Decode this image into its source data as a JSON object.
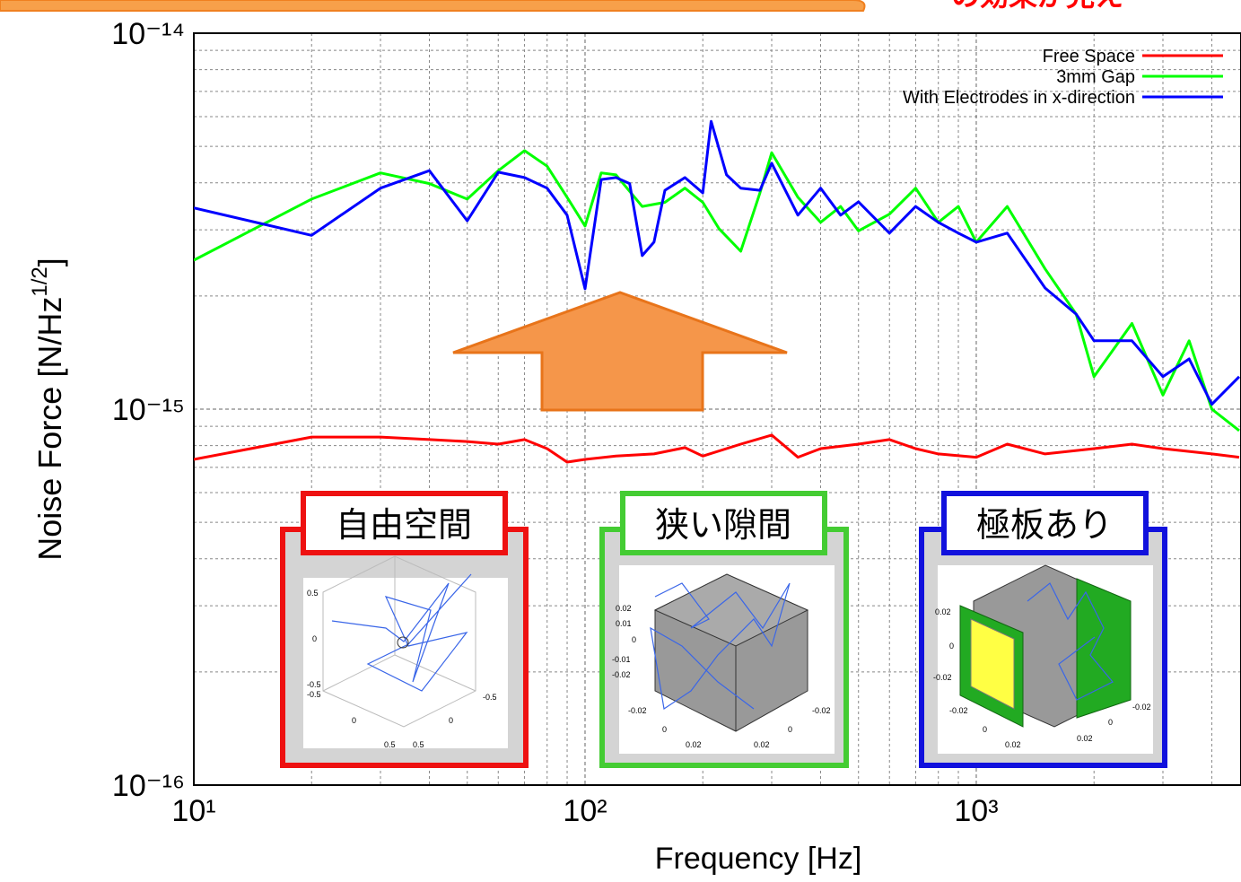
{
  "header": {
    "caption": "の効果が見え"
  },
  "chart_data": {
    "type": "line",
    "x_label": "Frequency [Hz]",
    "y_label": [
      "Noise Force [N/Hz",
      "1/2",
      "]"
    ],
    "log_x": true,
    "log_y": true,
    "grid": true,
    "xlim": [
      10,
      4750
    ],
    "ylim": [
      1e-16,
      1e-14
    ],
    "xticks": [
      {
        "value": 10,
        "label": "10¹"
      },
      {
        "value": 100,
        "label": "10²"
      },
      {
        "value": 1000,
        "label": "10³"
      }
    ],
    "yticks": [
      {
        "value": 1e-16,
        "label": "10⁻¹⁶"
      },
      {
        "value": 1e-15,
        "label": "10⁻¹⁵"
      },
      {
        "value": 1e-14,
        "label": "10⁻¹⁴"
      }
    ],
    "x_minor_ticks": [
      20,
      30,
      40,
      50,
      60,
      70,
      80,
      90,
      200,
      300,
      400,
      500,
      600,
      700,
      800,
      900,
      2000,
      3000,
      4000
    ],
    "y_minor_ticks": [
      2e-16,
      3e-16,
      4e-16,
      5e-16,
      6e-16,
      7e-16,
      8e-16,
      9e-16,
      2e-15,
      3e-15,
      4e-15,
      5e-15,
      6e-15,
      7e-15,
      8e-15,
      9e-15
    ],
    "legend": "upper right",
    "series": [
      {
        "name": "Free Space",
        "color": "#ff0000",
        "x": [
          10,
          20,
          30,
          40,
          50,
          60,
          70,
          80,
          90,
          100,
          120,
          150,
          180,
          200,
          250,
          300,
          350,
          400,
          500,
          600,
          700,
          800,
          1000,
          1200,
          1500,
          2000,
          2500,
          3000,
          4000,
          4700
        ],
        "values": [
          7.35e-16,
          8.43e-16,
          8.43e-16,
          8.3e-16,
          8.2e-16,
          8.07e-16,
          8.3e-16,
          7.85e-16,
          7.23e-16,
          7.35e-16,
          7.5e-16,
          7.6e-16,
          7.9e-16,
          7.5e-16,
          8.07e-16,
          8.53e-16,
          7.45e-16,
          7.85e-16,
          8.07e-16,
          8.3e-16,
          7.85e-16,
          7.6e-16,
          7.45e-16,
          8.07e-16,
          7.6e-16,
          7.85e-16,
          8.07e-16,
          7.85e-16,
          7.6e-16,
          7.45e-16
        ]
      },
      {
        "name": "3mm Gap",
        "color": "#00ff00",
        "x": [
          10,
          20,
          30,
          40,
          50,
          60,
          70,
          80,
          90,
          100,
          110,
          120,
          140,
          160,
          180,
          200,
          220,
          250,
          280,
          300,
          350,
          400,
          450,
          500,
          600,
          700,
          800,
          900,
          1000,
          1200,
          1500,
          1800,
          2000,
          2500,
          3000,
          3500,
          4000,
          4700
        ],
        "values": [
          2.49e-15,
          3.62e-15,
          4.25e-15,
          3.98e-15,
          3.62e-15,
          4.31e-15,
          4.87e-15,
          4.43e-15,
          3.66e-15,
          3.07e-15,
          4.25e-15,
          4.2e-15,
          3.46e-15,
          3.55e-15,
          3.87e-15,
          3.55e-15,
          3.02e-15,
          2.63e-15,
          3.76e-15,
          4.81e-15,
          3.66e-15,
          3.14e-15,
          3.46e-15,
          2.98e-15,
          3.3e-15,
          3.87e-15,
          3.14e-15,
          3.46e-15,
          2.78e-15,
          3.46e-15,
          2.36e-15,
          1.79e-15,
          1.22e-15,
          1.69e-15,
          1.09e-15,
          1.52e-15,
          1e-15,
          8.77e-16
        ]
      },
      {
        "name": "With Electrodes in x-direction",
        "color": "#0000ff",
        "x": [
          10,
          20,
          30,
          40,
          50,
          60,
          70,
          80,
          90,
          100,
          110,
          120,
          130,
          140,
          150,
          160,
          180,
          200,
          210,
          230,
          250,
          280,
          300,
          350,
          400,
          450,
          500,
          600,
          700,
          800,
          900,
          1000,
          1200,
          1500,
          1800,
          2000,
          2500,
          3000,
          3500,
          4000,
          4700
        ],
        "values": [
          3.43e-15,
          2.9e-15,
          3.87e-15,
          4.31e-15,
          3.17e-15,
          4.27e-15,
          4.13e-15,
          3.87e-15,
          3.28e-15,
          2.09e-15,
          4.08e-15,
          4.13e-15,
          3.98e-15,
          2.56e-15,
          2.78e-15,
          3.82e-15,
          4.13e-15,
          3.76e-15,
          5.83e-15,
          4.2e-15,
          3.87e-15,
          3.82e-15,
          4.51e-15,
          3.28e-15,
          3.87e-15,
          3.28e-15,
          3.56e-15,
          2.94e-15,
          3.46e-15,
          3.14e-15,
          2.94e-15,
          2.78e-15,
          2.94e-15,
          2.1e-15,
          1.79e-15,
          1.52e-15,
          1.52e-15,
          1.22e-15,
          1.36e-15,
          1.03e-15,
          1.22e-15
        ]
      }
    ]
  },
  "insets": [
    {
      "title": "自由空間",
      "axis_labels": [
        "0.5",
        "0",
        "-0.5",
        "-0.5",
        "0",
        "0.5",
        "0.5",
        "0",
        "-0.5"
      ]
    },
    {
      "title": "狭い隙間",
      "axis_labels": [
        "0.02",
        "0.01",
        "0",
        "-0.01",
        "-0.02",
        "-0.02",
        "0",
        "0.02",
        "0.02",
        "0",
        "-0.02"
      ]
    },
    {
      "title": "極板あり",
      "axis_labels": [
        "0.02",
        "0",
        "-0.02",
        "-0.02",
        "0",
        "0.02",
        "0.02",
        "0",
        "-0.02"
      ]
    }
  ]
}
